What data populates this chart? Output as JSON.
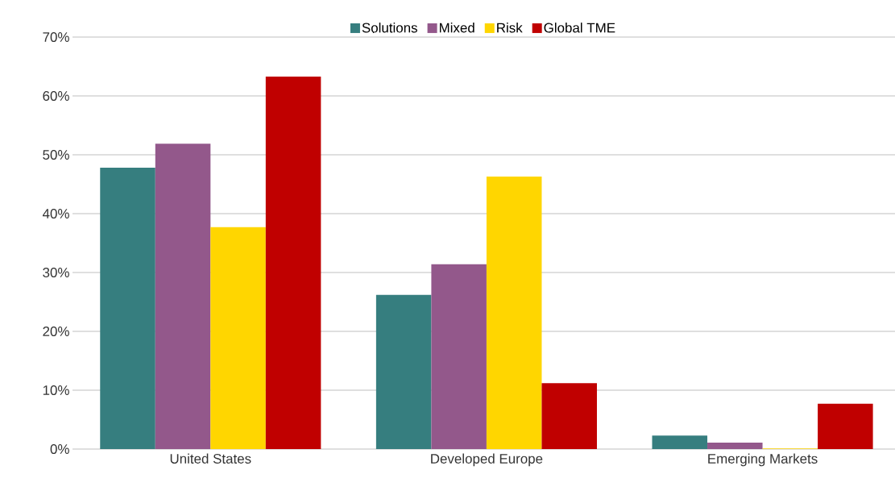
{
  "chart_data": {
    "type": "bar",
    "categories": [
      "United States",
      "Developed Europe",
      "Emerging Markets"
    ],
    "series": [
      {
        "name": "Solutions",
        "color": "#367e7f",
        "values": [
          47.8,
          26.2,
          2.3
        ]
      },
      {
        "name": "Mixed",
        "color": "#93588b",
        "values": [
          51.9,
          31.4,
          1.1
        ]
      },
      {
        "name": "Risk",
        "color": "#ffd600",
        "values": [
          37.7,
          46.3,
          0.1
        ]
      },
      {
        "name": "Global TME",
        "color": "#c00000",
        "values": [
          63.3,
          11.2,
          7.7
        ]
      }
    ],
    "ylim": [
      0,
      70
    ],
    "yticks": [
      {
        "value": 0,
        "label": "0%"
      },
      {
        "value": 10,
        "label": "10%"
      },
      {
        "value": 20,
        "label": "20%"
      },
      {
        "value": 30,
        "label": "30%"
      },
      {
        "value": 40,
        "label": "40%"
      },
      {
        "value": 50,
        "label": "50%"
      },
      {
        "value": 60,
        "label": "60%"
      },
      {
        "value": 70,
        "label": "70%"
      }
    ],
    "grid": "y",
    "legend": "top"
  }
}
